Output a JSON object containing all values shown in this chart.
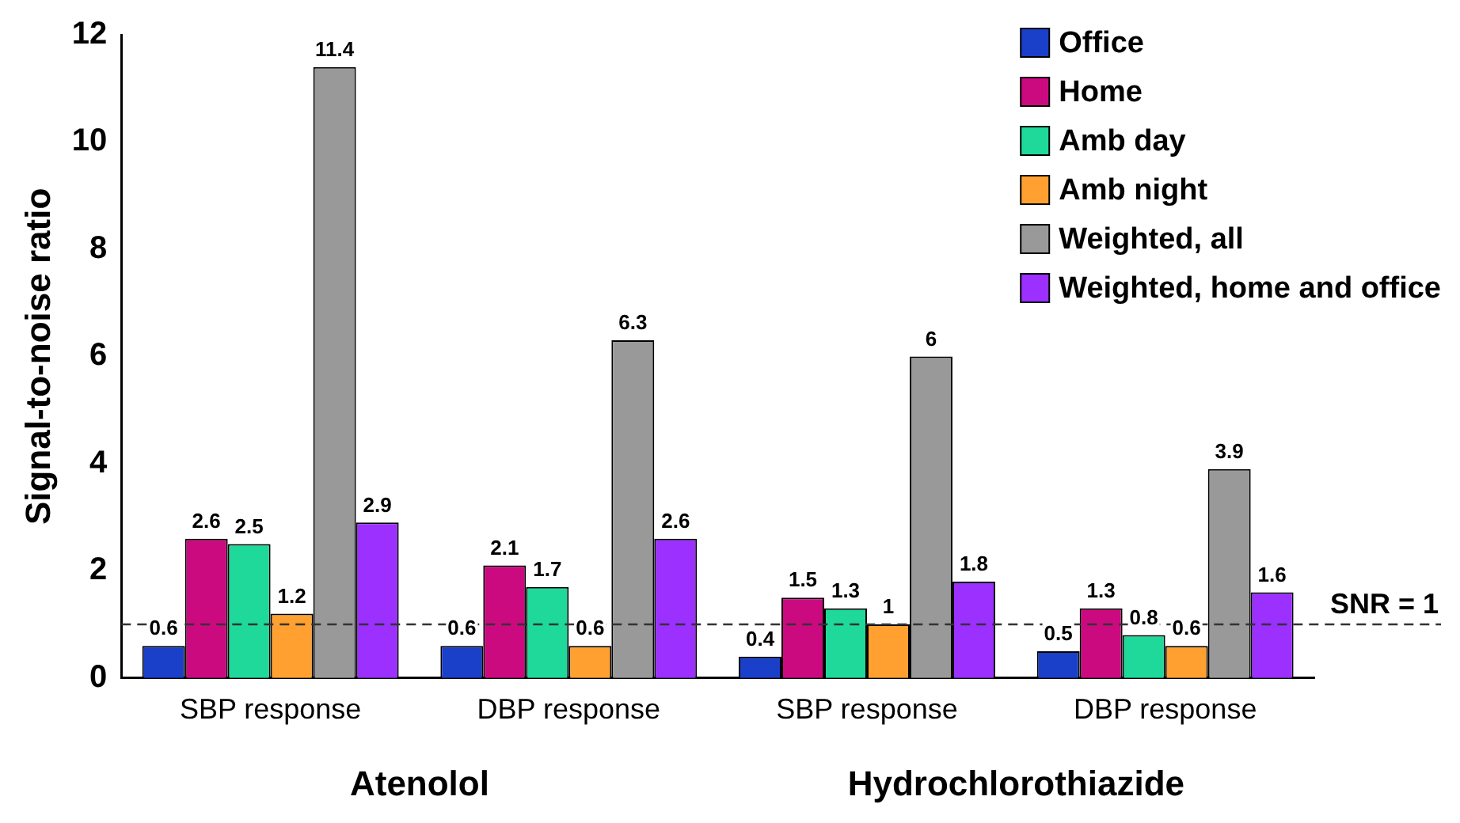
{
  "chart_data": {
    "type": "bar",
    "ylabel": "Signal-to-noise ratio",
    "categories": [
      "SBP response",
      "DBP response",
      "SBP response",
      "DBP response"
    ],
    "series": [
      {
        "name": "Office",
        "color": "#1a3fc8",
        "values": [
          0.6,
          0.6,
          0.4,
          0.5
        ]
      },
      {
        "name": "Home",
        "color": "#cc0a80",
        "values": [
          2.6,
          2.1,
          1.5,
          1.3
        ]
      },
      {
        "name": "Amb day",
        "color": "#1ed99a",
        "values": [
          2.5,
          1.7,
          1.3,
          0.8
        ]
      },
      {
        "name": "Amb night",
        "color": "#ffa030",
        "values": [
          1.2,
          0.6,
          1,
          0.6
        ]
      },
      {
        "name": "Weighted, all",
        "color": "#999999",
        "values": [
          11.4,
          6.3,
          6,
          3.9
        ]
      },
      {
        "name": "Weighted, home and office",
        "color": "#9b30ff",
        "values": [
          2.9,
          2.6,
          1.8,
          1.6
        ]
      }
    ],
    "ylim": [
      0,
      12
    ],
    "yticks": [
      0,
      2,
      4,
      6,
      8,
      10,
      12
    ],
    "grid": false,
    "legend": "top right",
    "data_labels": true,
    "ref_lines": [
      {
        "axis": "y",
        "value": 1,
        "label": "SNR = 1",
        "line_style": "dashed"
      }
    ],
    "annotations": [
      "Atenolol",
      "Hydrochlorothiazide"
    ]
  }
}
